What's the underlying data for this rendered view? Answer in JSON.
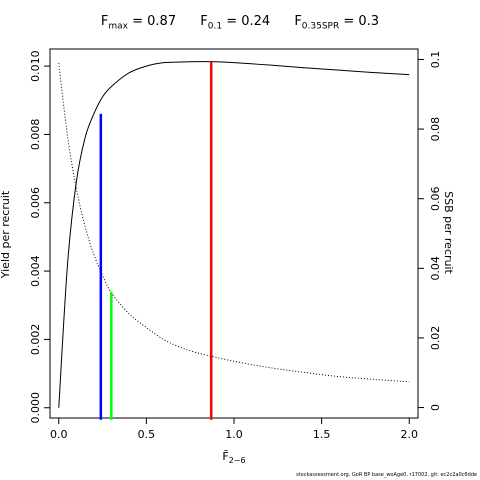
{
  "title": {
    "fmax_label": "F",
    "fmax_sub": "max",
    "fmax_value": " = 0.87",
    "f01_label": "F",
    "f01_sub": "0.1",
    "f01_value": " = 0.24",
    "fspr_label": "F",
    "fspr_sub": "0.35SPR",
    "fspr_value": " = 0.3"
  },
  "footnote": "stockassessment.org, GoR BP base_woAge0, r17002, git: ec2c2a0c6dde",
  "chart_data": {
    "type": "line",
    "xlabel": "F̄",
    "xlabel_sub": "2−6",
    "ylabel": "Yield per recruit",
    "y2label": "SSB per recruit",
    "xlim": [
      -0.05,
      2.05
    ],
    "ylim": [
      -0.0003,
      0.0105
    ],
    "y2lim": [
      -0.003,
      0.103
    ],
    "xticks": [
      0,
      0.5,
      1,
      1.5,
      2
    ],
    "xtick_labels": [
      "0.0",
      "0.5",
      "1.0",
      "1.5",
      "2.0"
    ],
    "yticks": [
      0,
      0.002,
      0.004,
      0.006,
      0.008,
      0.01
    ],
    "ytick_labels": [
      "0.000",
      "0.002",
      "0.004",
      "0.006",
      "0.008",
      "0.010"
    ],
    "y2ticks": [
      0,
      0.02,
      0.04,
      0.06,
      0.08,
      0.1
    ],
    "y2tick_labels": [
      "0",
      "0.02",
      "0.04",
      "0.06",
      "0.08",
      "0.1"
    ],
    "series": [
      {
        "style": "solid",
        "axis": "left",
        "x": [
          0,
          0.05,
          0.1,
          0.15,
          0.2,
          0.25,
          0.3,
          0.4,
          0.5,
          0.6,
          0.7,
          0.8,
          0.87,
          1.0,
          1.2,
          1.4,
          1.6,
          1.8,
          2.0
        ],
        "y": [
          0,
          0.0042,
          0.0066,
          0.0079,
          0.0086,
          0.0091,
          0.0094,
          0.0098,
          0.01,
          0.0101,
          0.01012,
          0.01013,
          0.01013,
          0.0101,
          0.01003,
          0.00995,
          0.00988,
          0.00981,
          0.00975
        ]
      },
      {
        "style": "dotted",
        "axis": "right",
        "x": [
          0,
          0.05,
          0.1,
          0.15,
          0.2,
          0.25,
          0.3,
          0.4,
          0.5,
          0.6,
          0.7,
          0.8,
          1.0,
          1.2,
          1.4,
          1.6,
          1.8,
          2.0
        ],
        "y": [
          0.099,
          0.078,
          0.063,
          0.052,
          0.044,
          0.038,
          0.033,
          0.027,
          0.023,
          0.0195,
          0.0172,
          0.0156,
          0.0133,
          0.0115,
          0.0101,
          0.0089,
          0.0081,
          0.0074
        ]
      }
    ],
    "reference_lines": [
      {
        "name": "F0.1",
        "x": 0.24,
        "y_top": 0.0086,
        "color": "#0000ff"
      },
      {
        "name": "F0.35SPR",
        "x": 0.3,
        "y_top": 0.0034,
        "color": "#00ff00"
      },
      {
        "name": "Fmax",
        "x": 0.87,
        "y_top": 0.01013,
        "color": "#ff0000"
      }
    ]
  }
}
